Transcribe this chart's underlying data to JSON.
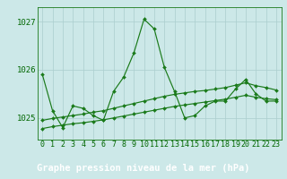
{
  "title": "Graphe pression niveau de la mer (hPa)",
  "x_values": [
    0,
    1,
    2,
    3,
    4,
    5,
    6,
    7,
    8,
    9,
    10,
    11,
    12,
    13,
    14,
    15,
    16,
    17,
    18,
    19,
    20,
    21,
    22,
    23
  ],
  "x_labels": [
    "0",
    "1",
    "2",
    "3",
    "4",
    "5",
    "6",
    "7",
    "8",
    "9",
    "10",
    "11",
    "12",
    "13",
    "14",
    "15",
    "16",
    "17",
    "18",
    "19",
    "20",
    "21",
    "22",
    "23"
  ],
  "peaked_line": [
    1025.9,
    1025.15,
    1024.8,
    1025.25,
    1025.2,
    1025.05,
    1024.95,
    1025.55,
    1025.85,
    1026.35,
    1027.05,
    1026.85,
    1026.05,
    1025.55,
    1025.0,
    1025.05,
    1025.25,
    1025.35,
    1025.35,
    1025.6,
    1025.8,
    1025.5,
    1025.35,
    1025.35
  ],
  "trend_low": [
    1024.78,
    1024.82,
    1024.85,
    1024.88,
    1024.9,
    1024.93,
    1024.96,
    1025.0,
    1025.04,
    1025.08,
    1025.12,
    1025.16,
    1025.2,
    1025.24,
    1025.27,
    1025.3,
    1025.33,
    1025.36,
    1025.39,
    1025.43,
    1025.47,
    1025.43,
    1025.4,
    1025.38
  ],
  "trend_high": [
    1024.95,
    1024.99,
    1025.02,
    1025.05,
    1025.08,
    1025.12,
    1025.15,
    1025.2,
    1025.25,
    1025.3,
    1025.35,
    1025.4,
    1025.45,
    1025.49,
    1025.52,
    1025.55,
    1025.57,
    1025.6,
    1025.63,
    1025.68,
    1025.73,
    1025.67,
    1025.63,
    1025.58
  ],
  "line_color": "#1a7a1a",
  "bg_color": "#cce8e8",
  "grid_color": "#aacece",
  "label_color": "#006600",
  "bottom_bar_color": "#336633",
  "bottom_bar_text_color": "#ffffff",
  "ylim": [
    1024.55,
    1027.3
  ],
  "yticks": [
    1025,
    1026,
    1027
  ],
  "title_fontsize": 7.5,
  "tick_fontsize": 6.0
}
